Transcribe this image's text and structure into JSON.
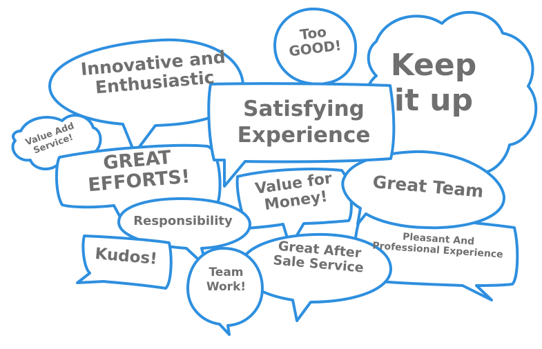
{
  "colors": {
    "stroke": "#2e8fdf",
    "fill": "#ffffff",
    "text": "#6f6f6f"
  },
  "bubbles": {
    "too_good": {
      "lines": [
        "Too",
        "GOOD!"
      ]
    },
    "keep_it_up": {
      "lines": [
        "Keep",
        "it up"
      ]
    },
    "innovative": {
      "lines": [
        "Innovative and",
        "Enthusiastic"
      ]
    },
    "satisfying": {
      "lines": [
        "Satisfying",
        "Experience"
      ]
    },
    "value_added": {
      "lines": [
        "Value Add",
        "Service!"
      ]
    },
    "great_efforts": {
      "lines": [
        "GREAT",
        "EFFORTS!"
      ]
    },
    "value_money": {
      "lines": [
        "Value for",
        "Money!"
      ]
    },
    "great_team": {
      "lines": [
        "Great Team"
      ]
    },
    "responsibility": {
      "lines": [
        "Responsibility"
      ]
    },
    "pleasant": {
      "lines": [
        "Pleasant And",
        "Professional Experience"
      ]
    },
    "kudos": {
      "lines": [
        "Kudos!"
      ]
    },
    "team_work": {
      "lines": [
        "Team",
        "Work!"
      ]
    },
    "after_sale": {
      "lines": [
        "Great After",
        "Sale Service"
      ]
    }
  }
}
